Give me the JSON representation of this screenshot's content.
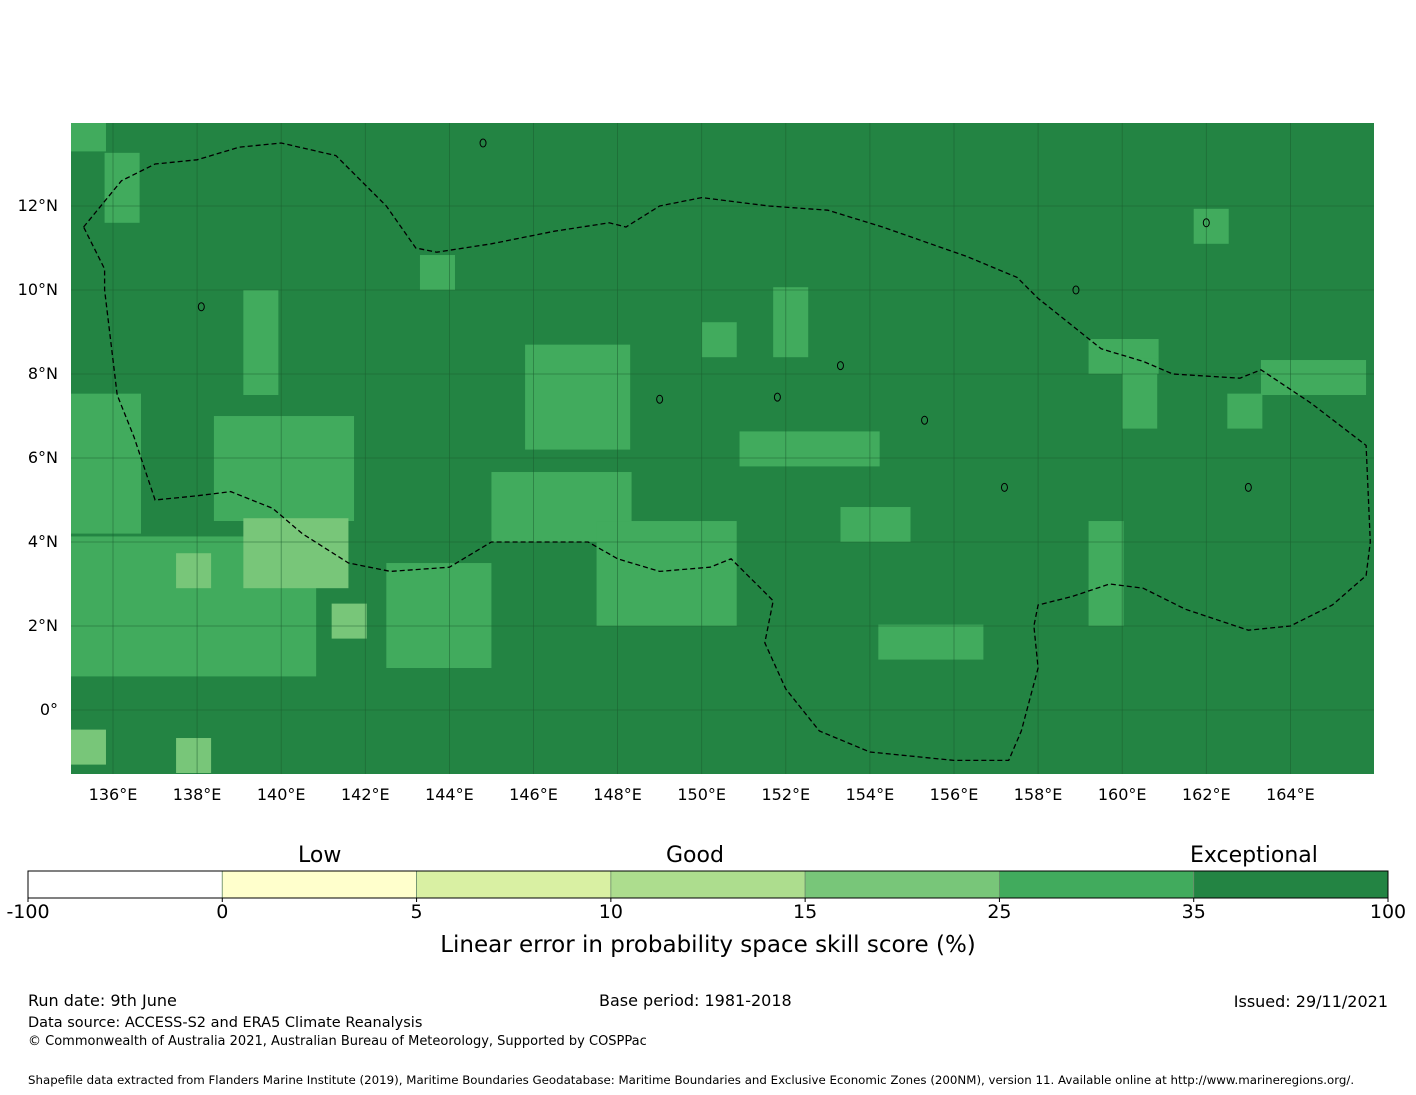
{
  "map": {
    "lon_ticks": [
      "136°E",
      "138°E",
      "140°E",
      "142°E",
      "144°E",
      "146°E",
      "148°E",
      "150°E",
      "152°E",
      "154°E",
      "156°E",
      "158°E",
      "160°E",
      "162°E",
      "164°E"
    ],
    "lat_ticks": [
      "12°N",
      "10°N",
      "8°N",
      "6°N",
      "4°N",
      "2°N",
      "0°"
    ],
    "lon_values": [
      136,
      138,
      140,
      142,
      144,
      146,
      148,
      150,
      152,
      154,
      156,
      158,
      160,
      162,
      164
    ],
    "lat_values": [
      12,
      10,
      8,
      6,
      4,
      2,
      0
    ],
    "extent": {
      "lon_min": 135.0,
      "lon_max": 166.0,
      "lat_min": -1.5,
      "lat_max": 14.0
    },
    "grid_cell_deg": 0.833,
    "default_category": 6,
    "patches": [
      {
        "lon": 135.0,
        "lat": 13.3,
        "w": 1,
        "h": 1,
        "cat": 5
      },
      {
        "lon": 135.8,
        "lat": 11.6,
        "w": 1,
        "h": 2,
        "cat": 5
      },
      {
        "lon": 143.3,
        "lat": 10.0,
        "w": 1,
        "h": 1,
        "cat": 5
      },
      {
        "lon": 139.1,
        "lat": 7.5,
        "w": 1,
        "h": 3,
        "cat": 5
      },
      {
        "lon": 135.0,
        "lat": 4.2,
        "w": 2,
        "h": 4,
        "cat": 5
      },
      {
        "lon": 135.0,
        "lat": 0.8,
        "w": 7,
        "h": 4,
        "cat": 5
      },
      {
        "lon": 138.4,
        "lat": 4.5,
        "w": 4,
        "h": 3,
        "cat": 5
      },
      {
        "lon": 142.5,
        "lat": 1.0,
        "w": 3,
        "h": 3,
        "cat": 5
      },
      {
        "lon": 145.0,
        "lat": 4.0,
        "w": 4,
        "h": 2,
        "cat": 5
      },
      {
        "lon": 145.8,
        "lat": 6.2,
        "w": 3,
        "h": 3,
        "cat": 5
      },
      {
        "lon": 147.5,
        "lat": 2.0,
        "w": 4,
        "h": 3,
        "cat": 5
      },
      {
        "lon": 150.0,
        "lat": 8.4,
        "w": 1,
        "h": 1,
        "cat": 5
      },
      {
        "lon": 151.7,
        "lat": 8.4,
        "w": 1,
        "h": 2,
        "cat": 5
      },
      {
        "lon": 150.9,
        "lat": 5.8,
        "w": 4,
        "h": 1,
        "cat": 5
      },
      {
        "lon": 153.3,
        "lat": 4.0,
        "w": 2,
        "h": 1,
        "cat": 5
      },
      {
        "lon": 154.2,
        "lat": 1.2,
        "w": 3,
        "h": 1,
        "cat": 5
      },
      {
        "lon": 159.2,
        "lat": 8.0,
        "w": 2,
        "h": 1,
        "cat": 5
      },
      {
        "lon": 160.0,
        "lat": 6.7,
        "w": 1,
        "h": 2,
        "cat": 5
      },
      {
        "lon": 162.5,
        "lat": 6.7,
        "w": 1,
        "h": 1,
        "cat": 5
      },
      {
        "lon": 163.3,
        "lat": 7.5,
        "w": 3,
        "h": 1,
        "cat": 5
      },
      {
        "lon": 159.2,
        "lat": 2.0,
        "w": 1,
        "h": 3,
        "cat": 5
      },
      {
        "lon": 161.7,
        "lat": 11.1,
        "w": 1,
        "h": 1,
        "cat": 5
      },
      {
        "lon": 139.1,
        "lat": 2.9,
        "w": 3,
        "h": 2,
        "cat": 4
      },
      {
        "lon": 137.5,
        "lat": 2.9,
        "w": 1,
        "h": 1,
        "cat": 4
      },
      {
        "lon": 141.2,
        "lat": 1.7,
        "w": 1,
        "h": 1,
        "cat": 4
      },
      {
        "lon": 135.0,
        "lat": -1.3,
        "w": 1,
        "h": 1,
        "cat": 4
      },
      {
        "lon": 137.5,
        "lat": -1.5,
        "w": 1,
        "h": 1,
        "cat": 4
      }
    ],
    "outline_lonlat": [
      [
        135.3,
        11.5
      ],
      [
        136.2,
        12.6
      ],
      [
        137.0,
        13.0
      ],
      [
        138.0,
        13.1
      ],
      [
        139.0,
        13.4
      ],
      [
        140.0,
        13.5
      ],
      [
        141.3,
        13.2
      ],
      [
        142.5,
        12.0
      ],
      [
        143.2,
        11.0
      ],
      [
        143.7,
        10.9
      ],
      [
        145.0,
        11.1
      ],
      [
        146.5,
        11.4
      ],
      [
        147.8,
        11.6
      ],
      [
        148.2,
        11.5
      ],
      [
        149.0,
        12.0
      ],
      [
        150.0,
        12.2
      ],
      [
        151.6,
        12.0
      ],
      [
        153.0,
        11.9
      ],
      [
        154.3,
        11.5
      ],
      [
        156.3,
        10.8
      ],
      [
        157.5,
        10.3
      ],
      [
        158.0,
        9.8
      ],
      [
        159.5,
        8.6
      ],
      [
        160.5,
        8.3
      ],
      [
        161.2,
        8.0
      ],
      [
        162.8,
        7.9
      ],
      [
        163.3,
        8.1
      ],
      [
        164.5,
        7.3
      ],
      [
        165.8,
        6.3
      ],
      [
        165.9,
        4.0
      ],
      [
        165.8,
        3.2
      ],
      [
        165.0,
        2.5
      ],
      [
        164.0,
        2.0
      ],
      [
        163.0,
        1.9
      ],
      [
        161.5,
        2.4
      ],
      [
        160.5,
        2.9
      ],
      [
        159.7,
        3.0
      ],
      [
        158.8,
        2.7
      ],
      [
        158.0,
        2.5
      ],
      [
        157.9,
        2.0
      ],
      [
        158.0,
        1.0
      ],
      [
        157.6,
        -0.5
      ],
      [
        157.3,
        -1.2
      ],
      [
        156.0,
        -1.2
      ],
      [
        154.0,
        -1.0
      ],
      [
        152.8,
        -0.5
      ],
      [
        152.0,
        0.5
      ],
      [
        151.5,
        1.6
      ],
      [
        151.7,
        2.6
      ],
      [
        151.3,
        3.0
      ],
      [
        150.7,
        3.6
      ],
      [
        150.2,
        3.4
      ],
      [
        149.0,
        3.3
      ],
      [
        148.0,
        3.6
      ],
      [
        147.3,
        4.0
      ],
      [
        146.0,
        4.0
      ],
      [
        145.0,
        4.0
      ],
      [
        144.0,
        3.4
      ],
      [
        142.6,
        3.3
      ],
      [
        141.6,
        3.5
      ],
      [
        140.5,
        4.2
      ],
      [
        139.8,
        4.8
      ],
      [
        138.8,
        5.2
      ],
      [
        138.0,
        5.1
      ],
      [
        137.0,
        5.0
      ],
      [
        136.5,
        6.5
      ],
      [
        136.1,
        7.5
      ],
      [
        135.8,
        10.0
      ],
      [
        135.8,
        10.5
      ],
      [
        135.3,
        11.5
      ]
    ]
  },
  "colorbar": {
    "band_labels": {
      "low": "Low",
      "good": "Good",
      "exceptional": "Exceptional"
    },
    "ticks": [
      "-100",
      "0",
      "5",
      "10",
      "15",
      "25",
      "35",
      "100"
    ],
    "colors": [
      "#ffffff",
      "#ffffcc",
      "#d9f0a3",
      "#addd8e",
      "#78c679",
      "#41ab5d",
      "#238443"
    ],
    "title": "Linear error in probability space skill score (%)"
  },
  "footer": {
    "run_date": "Run date: 9th June",
    "base_period": "Base period: 1981-2018",
    "issued": "Issued: 29/11/2021",
    "data_source": "Data source: ACCESS-S2 and ERA5 Climate Reanalysis",
    "copyright": "© Commonwealth of Australia 2021, Australian Bureau of Meteorology, Supported by COSPPac",
    "shapefile": "Shapefile data extracted from Flanders Marine Institute (2019), Maritime Boundaries Geodatabase: Maritime Boundaries and Exclusive Economic Zones (200NM), version 11. Available online at http://www.marineregions.org/."
  }
}
